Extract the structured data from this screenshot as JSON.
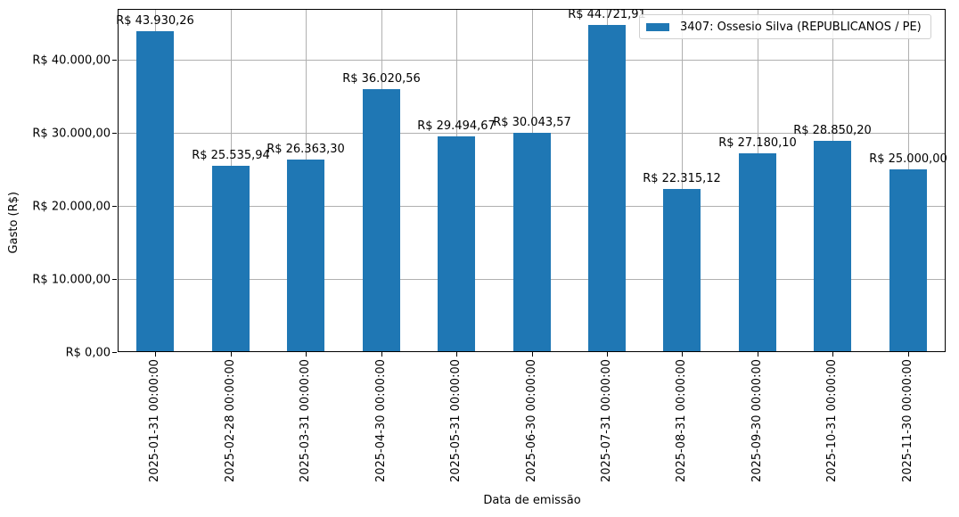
{
  "chart_data": {
    "type": "bar",
    "title": "",
    "xlabel": "Data de emissão",
    "ylabel": "Gasto (R$)",
    "ylim": [
      0,
      47000
    ],
    "grid": true,
    "legend_position": "upper right",
    "categories": [
      "2025-01-31 00:00:00",
      "2025-02-28 00:00:00",
      "2025-03-31 00:00:00",
      "2025-04-30 00:00:00",
      "2025-05-31 00:00:00",
      "2025-06-30 00:00:00",
      "2025-07-31 00:00:00",
      "2025-08-31 00:00:00",
      "2025-09-30 00:00:00",
      "2025-10-31 00:00:00",
      "2025-11-30 00:00:00"
    ],
    "series": [
      {
        "name": "3407: Ossesio Silva (REPUBLICANOS / PE)",
        "color": "#1f77b4",
        "values": [
          43930.26,
          25535.94,
          26363.3,
          36020.56,
          29494.67,
          30043.57,
          44721.91,
          22315.12,
          27180.1,
          28850.2,
          25000.0
        ],
        "labels": [
          "R$ 43.930,26",
          "R$ 25.535,94",
          "R$ 26.363,30",
          "R$ 36.020,56",
          "R$ 29.494,67",
          "R$ 30.043,57",
          "R$ 44.721,91",
          "R$ 22.315,12",
          "R$ 27.180,10",
          "R$ 28.850,20",
          "R$ 25.000,00"
        ]
      }
    ],
    "yticks": [
      {
        "value": 0,
        "label": "R$ 0,00"
      },
      {
        "value": 10000,
        "label": "R$ 10.000,00"
      },
      {
        "value": 20000,
        "label": "R$ 20.000,00"
      },
      {
        "value": 30000,
        "label": "R$ 30.000,00"
      },
      {
        "value": 40000,
        "label": "R$ 40.000,00"
      }
    ]
  },
  "legend": {
    "label": "3407: Ossesio Silva (REPUBLICANOS / PE)"
  }
}
